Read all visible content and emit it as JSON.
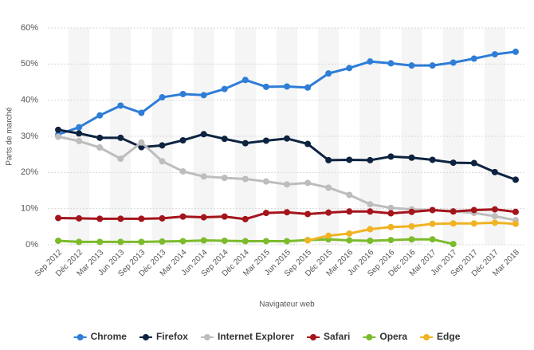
{
  "chart_data": {
    "type": "line",
    "y_label": "Parts de marché",
    "x_label": "Navigateur web",
    "categories": [
      "Sep 2012",
      "Déc 2012",
      "Mar 2013",
      "Jun 2013",
      "Sep 2013",
      "Déc 2013",
      "Mar 2014",
      "Jun 2014",
      "Sep 2014",
      "Déc 2014",
      "Mar 2015",
      "Jun 2015",
      "Sep 2015",
      "Déc 2015",
      "Mar 2016",
      "Jun 2016",
      "Sep 2016",
      "Déc 2016",
      "Mar 2017",
      "Jun 2017",
      "Sep 2017",
      "Déc 2017",
      "Mar 2018"
    ],
    "series": [
      {
        "name": "Chrome",
        "color": "#2e7dd7",
        "values": [
          30.5,
          32.5,
          35.8,
          38.5,
          36.5,
          40.8,
          41.7,
          41.4,
          43.1,
          45.6,
          43.7,
          43.8,
          43.5,
          47.4,
          48.9,
          50.7,
          50.2,
          49.6,
          49.6,
          50.4,
          51.5,
          52.7,
          53.4
        ]
      },
      {
        "name": "Firefox",
        "color": "#0d2340",
        "values": [
          31.8,
          30.8,
          29.6,
          29.6,
          27.0,
          27.5,
          28.9,
          30.6,
          29.3,
          28.1,
          28.8,
          29.4,
          27.9,
          23.4,
          23.5,
          23.4,
          24.4,
          24.1,
          23.5,
          22.7,
          22.6,
          20.1,
          18.0
        ]
      },
      {
        "name": "Internet Explorer",
        "color": "#bdbdbd",
        "values": [
          29.9,
          28.7,
          26.9,
          23.8,
          28.3,
          23.1,
          20.3,
          18.9,
          18.5,
          18.2,
          17.5,
          16.7,
          17.1,
          15.8,
          13.8,
          11.2,
          10.2,
          9.8,
          9.6,
          9.3,
          8.8,
          7.9,
          6.8
        ]
      },
      {
        "name": "Safari",
        "color": "#a4141b",
        "values": [
          7.4,
          7.3,
          7.2,
          7.2,
          7.2,
          7.3,
          7.8,
          7.6,
          7.8,
          7.1,
          8.8,
          9.0,
          8.5,
          8.9,
          9.2,
          9.2,
          8.7,
          9.1,
          9.6,
          9.2,
          9.6,
          9.8,
          9.1
        ]
      },
      {
        "name": "Opera",
        "color": "#7cbb2c",
        "values": [
          1.1,
          0.8,
          0.8,
          0.8,
          0.8,
          0.9,
          1.0,
          1.2,
          1.1,
          1.0,
          1.0,
          1.0,
          1.3,
          1.5,
          1.2,
          1.1,
          1.3,
          1.5,
          1.5,
          0.2,
          null,
          null,
          null
        ]
      },
      {
        "name": "Edge",
        "color": "#f0b323",
        "values": [
          null,
          null,
          null,
          null,
          null,
          null,
          null,
          null,
          null,
          null,
          null,
          null,
          1.2,
          2.5,
          3.1,
          4.3,
          4.9,
          5.1,
          5.8,
          5.9,
          5.9,
          6.1,
          5.8
        ]
      }
    ],
    "ylim": [
      0,
      60
    ],
    "yticks": [
      {
        "value": 0,
        "label": "0%"
      },
      {
        "value": 10,
        "label": "10%"
      },
      {
        "value": 20,
        "label": "20%"
      },
      {
        "value": 30,
        "label": "30%"
      },
      {
        "value": 40,
        "label": "40%"
      },
      {
        "value": 50,
        "label": "50%"
      },
      {
        "value": 60,
        "label": "60%"
      }
    ],
    "grid": true,
    "legend": "bottom"
  }
}
